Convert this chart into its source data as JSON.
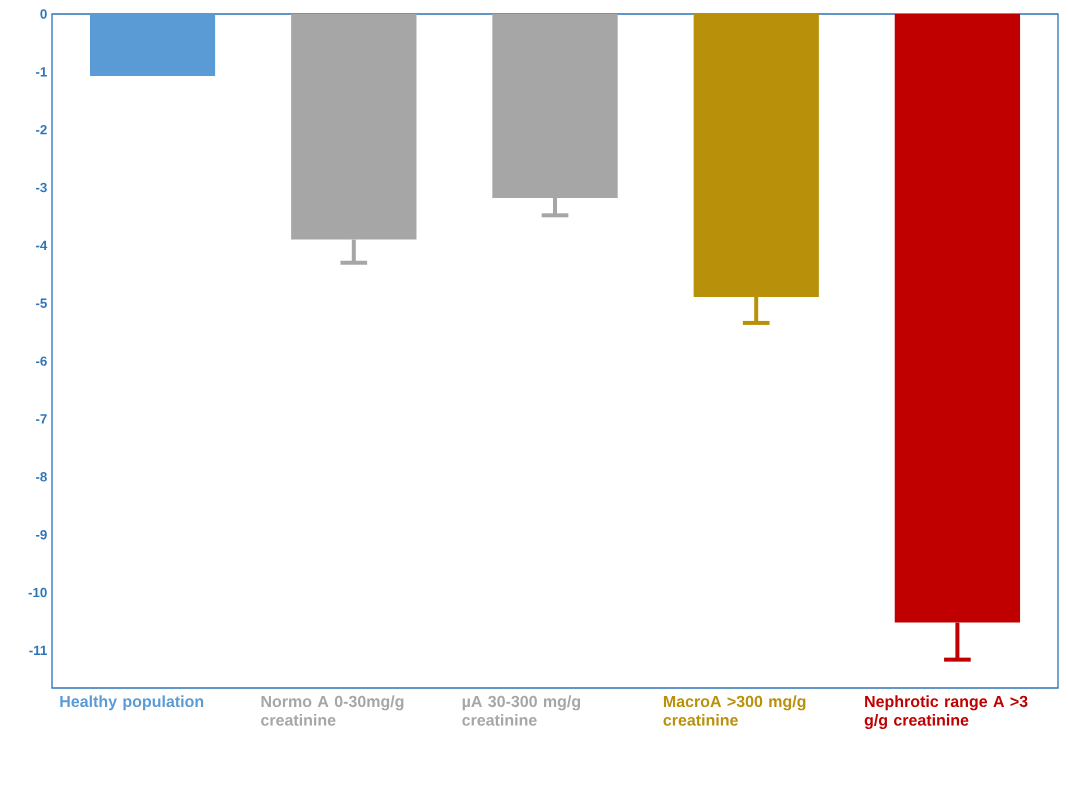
{
  "chart_data": {
    "type": "bar",
    "categories": [
      "Healthy population",
      "Normo A 0-30mg/g creatinine",
      "µA 30-300 mg/g creatinine",
      "MacroA >300 mg/g creatinine",
      "Nephrotic range A >3 g/g creatinine"
    ],
    "values": [
      -1.07,
      -3.9,
      -3.18,
      -4.89,
      -10.52
    ],
    "errors": [
      null,
      [
        -4.3,
        -3.9
      ],
      [
        -3.48,
        -3.18
      ],
      [
        -5.34,
        -4.89
      ],
      [
        -11.16,
        -10.52
      ]
    ],
    "colors": [
      "#5b9bd5",
      "#a6a6a6",
      "#a6a6a6",
      "#b8900a",
      "#c00000"
    ],
    "ylim": [
      -11.65,
      0
    ],
    "yticks": [
      0,
      -1,
      -2,
      -3,
      -4,
      -5,
      -6,
      -7,
      -8,
      -9,
      -10,
      -11
    ],
    "grid": false
  }
}
